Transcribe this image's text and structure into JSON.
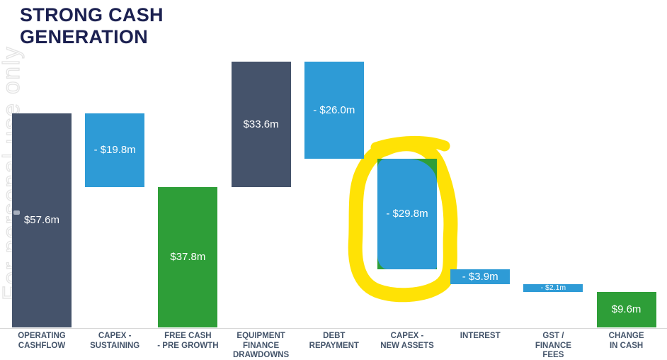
{
  "title": {
    "line1": "STRONG CASH",
    "line2": "GENERATION"
  },
  "watermark": {
    "text": "For personal use only"
  },
  "colors": {
    "title_navy": "#1B2050",
    "flow_dark_slate": "#45536B",
    "outflow_blue": "#2E9BD6",
    "total_green": "#2E9E38",
    "highlight_yellow": "#FFE205",
    "category_label": "#44546A",
    "axis_line": "#D8D8D8",
    "value_label_white": "#FFFFFF",
    "watermark_gray": "#E3E3E3"
  },
  "chart_data": {
    "type": "bar",
    "subtype": "waterfall",
    "title": "STRONG CASH GENERATION",
    "unit": "$m",
    "grid": false,
    "legend": false,
    "ylim": [
      0,
      75
    ],
    "categories": [
      [
        "OPERATING",
        "CASHFLOW"
      ],
      [
        "CAPEX -",
        "SUSTAINING"
      ],
      [
        "FREE CASH",
        "- PRE GROWTH"
      ],
      [
        "EQUIPMENT",
        "FINANCE",
        "DRAWDOWNS"
      ],
      [
        "DEBT",
        "REPAYMENT"
      ],
      [
        "CAPEX -",
        "NEW ASSETS"
      ],
      [
        "INTEREST"
      ],
      [
        "GST /",
        "FINANCE",
        "FEES"
      ],
      [
        "CHANGE",
        "IN CASH"
      ]
    ],
    "values": [
      57.6,
      -19.8,
      37.8,
      33.6,
      -26.0,
      -29.8,
      -3.9,
      -2.1,
      9.6
    ],
    "value_labels": [
      "$57.6m",
      "- $19.8m",
      "$37.8m",
      "$33.6m",
      "- $26.0m",
      "- $29.8m",
      "- $3.9m",
      "- $2.1m",
      "$9.6m"
    ],
    "bar_kinds": [
      "start",
      "decrease",
      "subtotal",
      "increase",
      "decrease",
      "decrease",
      "decrease",
      "decrease",
      "total"
    ],
    "bar_colors": [
      "#45536B",
      "#2E9BD6",
      "#2E9E38",
      "#45536B",
      "#2E9BD6",
      "#2E9BD6",
      "#2E9BD6",
      "#2E9BD6",
      "#2E9E38"
    ],
    "cumulative_start": [
      0,
      57.6,
      0,
      37.8,
      71.4,
      45.4,
      15.6,
      11.7,
      0
    ],
    "cumulative_end": [
      57.6,
      37.8,
      37.8,
      71.4,
      45.4,
      15.6,
      11.7,
      9.6,
      9.6
    ],
    "small_label_indices": [
      7
    ],
    "annotation": {
      "type": "hand-drawn-circle",
      "target_index": 5,
      "target_category": "CAPEX - NEW ASSETS",
      "color": "#FFE205",
      "underlay_color": "#2E9E38"
    }
  }
}
